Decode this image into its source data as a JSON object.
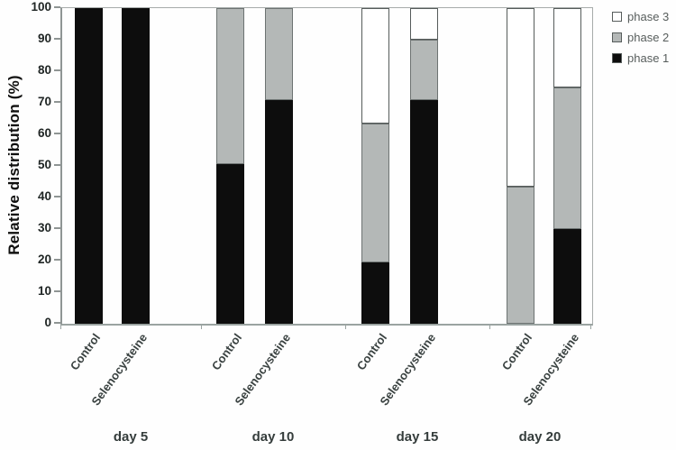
{
  "chart_data": {
    "type": "bar",
    "subtype": "stacked-100",
    "title": "",
    "ylabel": "Relative distribution (%)",
    "xlabel": "",
    "ylim": [
      0,
      100
    ],
    "yticks": [
      0,
      10,
      20,
      30,
      40,
      50,
      60,
      70,
      80,
      90,
      100
    ],
    "grid": false,
    "groups": [
      "day 5",
      "day 10",
      "day 15",
      "day 20"
    ],
    "categories_per_group": [
      "Control",
      "Selenocysteine"
    ],
    "bar_order": [
      "day 5 / Control",
      "day 5 / Selenocysteine",
      "day 10 / Control",
      "day 10 / Selenocysteine",
      "day 15 / Control",
      "day 15 / Selenocysteine",
      "day 20 / Control",
      "day 20 / Selenocysteine"
    ],
    "series": [
      {
        "name": "phase 1",
        "color": "#0d0d0d",
        "border": "#0d0d0d",
        "values": [
          100,
          100,
          50.5,
          71,
          19.5,
          71,
          0,
          30
        ]
      },
      {
        "name": "phase 2",
        "color": "#b4b8b7",
        "border": "#6d7372",
        "values": [
          0,
          0,
          49.5,
          29,
          44,
          19,
          43.5,
          45
        ]
      },
      {
        "name": "phase 3",
        "color": "#ffffff",
        "border": "#565c5b",
        "values": [
          0,
          0,
          0,
          0,
          36.5,
          10,
          56.5,
          25
        ]
      }
    ],
    "legend": {
      "position": "top-right",
      "entries": [
        {
          "label": "phase 3",
          "color": "#ffffff"
        },
        {
          "label": "phase 2",
          "color": "#b4b8b7"
        },
        {
          "label": "phase 1",
          "color": "#0d0d0d"
        }
      ]
    }
  }
}
